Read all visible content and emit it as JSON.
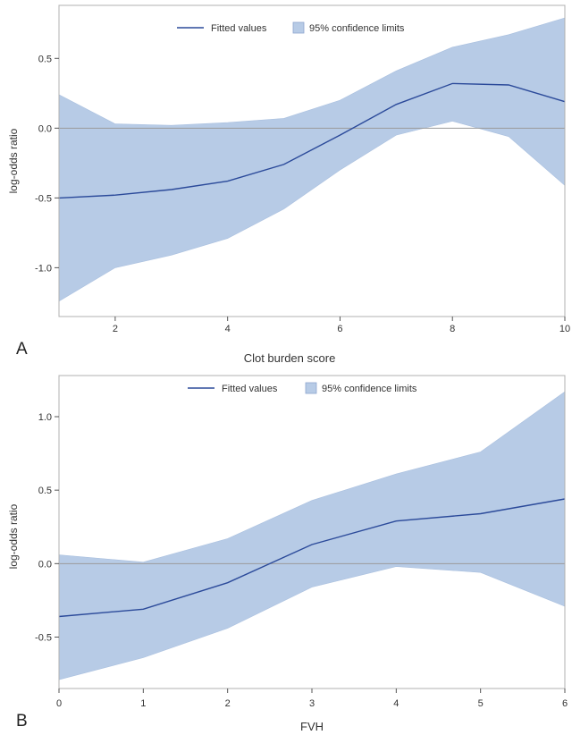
{
  "colors": {
    "band": "#b7cbe6",
    "band_stroke": "#aac0df",
    "line": "#2b4a9a",
    "zero_line": "#9a9a9a",
    "frame": "#b0b0b0"
  },
  "chart_data": [
    {
      "type": "line",
      "panel_label": "A",
      "xlabel": "Clot burden score",
      "ylabel": "log-odds ratio",
      "xlim": [
        1,
        10
      ],
      "ylim": [
        -1.35,
        0.88
      ],
      "xticks": [
        2,
        4,
        6,
        8,
        10
      ],
      "yticks": [
        -1.0,
        -0.5,
        0.0,
        0.5
      ],
      "ytick_labels": [
        "-1.0",
        "-0.5",
        "0.0",
        "0.5"
      ],
      "reference_line_y": 0,
      "legend": {
        "line_label": "Fitted values",
        "band_label": "95% confidence limits",
        "position": "top"
      },
      "x": [
        1,
        2,
        3,
        4,
        5,
        6,
        7,
        8,
        9,
        10
      ],
      "series": [
        {
          "name": "Fitted values",
          "values": [
            -0.5,
            -0.48,
            -0.44,
            -0.38,
            -0.26,
            -0.05,
            0.17,
            0.32,
            0.31,
            0.19
          ]
        },
        {
          "name": "95% confidence limits",
          "lower": [
            -1.24,
            -1.0,
            -0.91,
            -0.79,
            -0.58,
            -0.3,
            -0.05,
            0.05,
            -0.06,
            -0.41
          ],
          "upper": [
            0.24,
            0.03,
            0.02,
            0.04,
            0.07,
            0.2,
            0.41,
            0.58,
            0.67,
            0.79
          ]
        }
      ]
    },
    {
      "type": "line",
      "panel_label": "B",
      "xlabel": "FVH",
      "ylabel": "log-odds ratio",
      "xlim": [
        0,
        6
      ],
      "ylim": [
        -0.85,
        1.28
      ],
      "xticks": [
        0,
        1,
        2,
        3,
        4,
        5,
        6
      ],
      "yticks": [
        -0.5,
        0.0,
        0.5,
        1.0
      ],
      "ytick_labels": [
        "-0.5",
        "0.0",
        "0.5",
        "1.0"
      ],
      "reference_line_y": 0,
      "legend": {
        "line_label": "Fitted values",
        "band_label": "95% confidence limits",
        "position": "top"
      },
      "x": [
        0,
        1,
        2,
        3,
        4,
        5,
        6
      ],
      "series": [
        {
          "name": "Fitted values",
          "values": [
            -0.36,
            -0.31,
            -0.13,
            0.13,
            0.29,
            0.34,
            0.44
          ]
        },
        {
          "name": "95% confidence limits",
          "lower": [
            -0.79,
            -0.64,
            -0.44,
            -0.16,
            -0.02,
            -0.06,
            -0.29
          ],
          "upper": [
            0.06,
            0.01,
            0.17,
            0.43,
            0.61,
            0.76,
            1.17
          ]
        }
      ]
    }
  ]
}
